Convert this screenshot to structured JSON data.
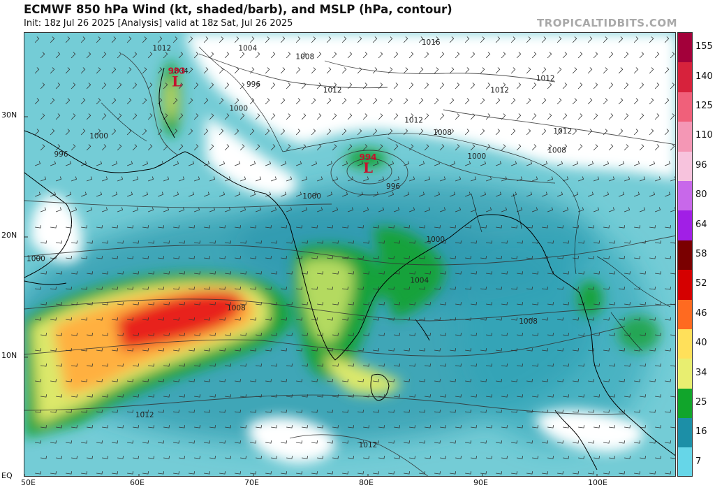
{
  "title": "ECMWF 850 hPa Wind (kt, shaded/barb), and MSLP (hPa, contour)",
  "subtitle": "Init: 18z Jul 26 2025   [Analysis]   valid at 18z Sat, Jul 26 2025",
  "brand": "TROPICALTIDBITS.COM",
  "axes": {
    "lon_labels": [
      "50E",
      "60E",
      "70E",
      "80E",
      "90E",
      "100E"
    ],
    "lat_labels": [
      "30N",
      "20N",
      "10N",
      "EQ"
    ]
  },
  "colorbar": {
    "labels": [
      "155",
      "140",
      "125",
      "110",
      "96",
      "80",
      "64",
      "58",
      "52",
      "46",
      "40",
      "34",
      "25",
      "16",
      "7"
    ],
    "colors": [
      "#a3003a",
      "#d7223c",
      "#f0607a",
      "#f497b5",
      "#f7c3dd",
      "#c868ea",
      "#a11fe6",
      "#7a0000",
      "#d50000",
      "#ff6a20",
      "#ffe05a",
      "#e8ee70",
      "#11a52b",
      "#1c8fa7",
      "#66d6e8"
    ]
  },
  "pressure_labels": [
    {
      "text": "1012",
      "lon": 62.0,
      "lat": 35.5
    },
    {
      "text": "1004",
      "lon": 69.5,
      "lat": 35.5
    },
    {
      "text": "1016",
      "lon": 85.5,
      "lat": 36.0
    },
    {
      "text": "1008",
      "lon": 74.5,
      "lat": 34.8
    },
    {
      "text": "1004",
      "lon": 63.5,
      "lat": 33.6
    },
    {
      "text": "996",
      "lon": 70.0,
      "lat": 32.5
    },
    {
      "text": "1012",
      "lon": 76.9,
      "lat": 32.0
    },
    {
      "text": "1012",
      "lon": 91.5,
      "lat": 32.0
    },
    {
      "text": "1012",
      "lon": 95.5,
      "lat": 33.0
    },
    {
      "text": "1000",
      "lon": 68.7,
      "lat": 30.5
    },
    {
      "text": "1012",
      "lon": 84.0,
      "lat": 29.5
    },
    {
      "text": "1012",
      "lon": 97.0,
      "lat": 28.6
    },
    {
      "text": "1008",
      "lon": 86.5,
      "lat": 28.5
    },
    {
      "text": "1000",
      "lon": 56.5,
      "lat": 28.2
    },
    {
      "text": "1008",
      "lon": 96.5,
      "lat": 27.0
    },
    {
      "text": "1000",
      "lon": 89.5,
      "lat": 26.5
    },
    {
      "text": "996",
      "lon": 53.2,
      "lat": 26.7
    },
    {
      "text": "996",
      "lon": 82.2,
      "lat": 24.0
    },
    {
      "text": "1000",
      "lon": 75.1,
      "lat": 23.2
    },
    {
      "text": "1000",
      "lon": 85.9,
      "lat": 19.6
    },
    {
      "text": "1000",
      "lon": 51.0,
      "lat": 18.0
    },
    {
      "text": "1004",
      "lon": 84.5,
      "lat": 16.2
    },
    {
      "text": "1008",
      "lon": 68.5,
      "lat": 13.9
    },
    {
      "text": "1008",
      "lon": 94.0,
      "lat": 12.8
    },
    {
      "text": "1012",
      "lon": 60.5,
      "lat": 5.0
    },
    {
      "text": "1012",
      "lon": 80.0,
      "lat": 2.5
    }
  ],
  "lows": [
    {
      "value": "994",
      "symbol": "L",
      "lon": 80.0,
      "lat": 25.8
    },
    {
      "value": "993",
      "symbol": "L",
      "lon": 63.3,
      "lat": 33.0
    }
  ]
}
